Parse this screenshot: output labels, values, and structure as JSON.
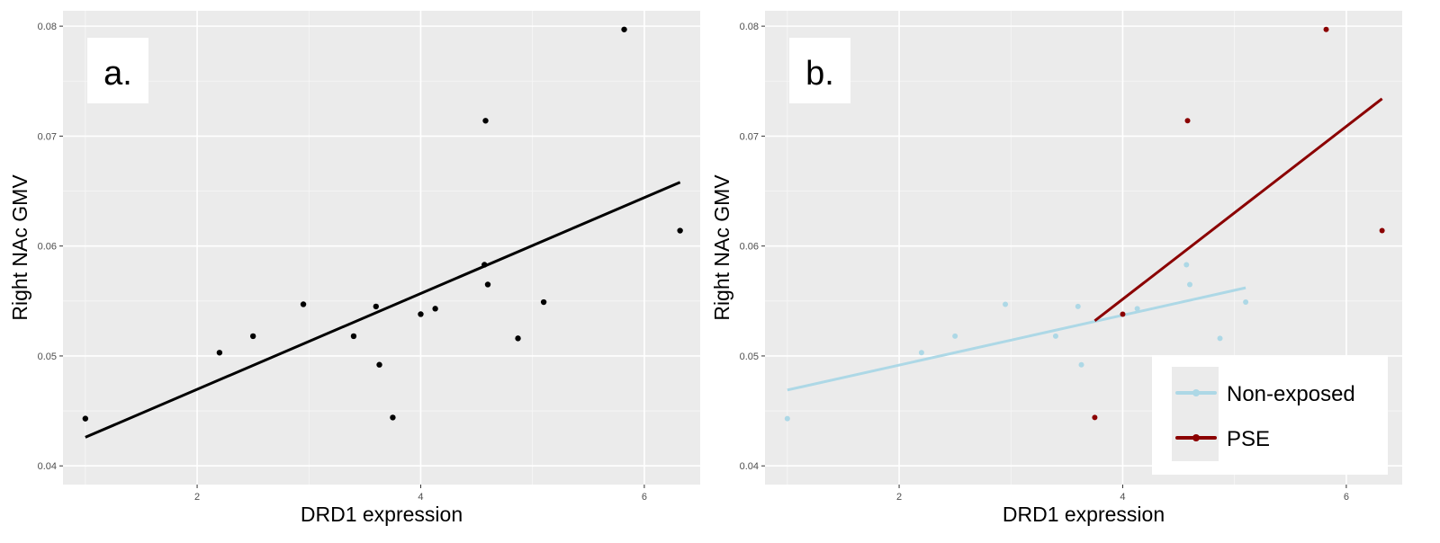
{
  "chart_data": [
    {
      "type": "scatter",
      "panel_label": "a.",
      "xlabel": "DRD1 expression",
      "ylabel": "Right NAc GMV",
      "xlim": [
        0.8,
        6.5
      ],
      "ylim": [
        0.0383,
        0.0814
      ],
      "x_ticks": [
        2,
        4,
        6
      ],
      "x_tick_labels": [
        "2",
        "4",
        "6"
      ],
      "y_ticks": [
        0.04,
        0.05,
        0.06,
        0.07,
        0.08
      ],
      "y_tick_labels": [
        "0.04",
        "0.05",
        "0.06",
        "0.07",
        "0.08"
      ],
      "grid": true,
      "point_color": "#000000",
      "line_color": "#000000",
      "points": [
        {
          "x": 1.0,
          "y": 0.0443
        },
        {
          "x": 2.2,
          "y": 0.0503
        },
        {
          "x": 2.5,
          "y": 0.0518
        },
        {
          "x": 2.95,
          "y": 0.0547
        },
        {
          "x": 3.4,
          "y": 0.0518
        },
        {
          "x": 3.6,
          "y": 0.0545
        },
        {
          "x": 3.63,
          "y": 0.0492
        },
        {
          "x": 3.75,
          "y": 0.0444
        },
        {
          "x": 4.0,
          "y": 0.0538
        },
        {
          "x": 4.13,
          "y": 0.0543
        },
        {
          "x": 4.57,
          "y": 0.0583
        },
        {
          "x": 4.58,
          "y": 0.0714
        },
        {
          "x": 4.6,
          "y": 0.0565
        },
        {
          "x": 4.87,
          "y": 0.0516
        },
        {
          "x": 5.1,
          "y": 0.0549
        },
        {
          "x": 5.82,
          "y": 0.0797
        },
        {
          "x": 6.32,
          "y": 0.0614
        }
      ],
      "fit_line": {
        "x": [
          1.0,
          6.32
        ],
        "y": [
          0.0426,
          0.0658
        ]
      }
    },
    {
      "type": "scatter",
      "panel_label": "b.",
      "xlabel": "DRD1 expression",
      "ylabel": "Right NAc GMV",
      "xlim": [
        0.8,
        6.5
      ],
      "ylim": [
        0.0383,
        0.0814
      ],
      "x_ticks": [
        2,
        4,
        6
      ],
      "x_tick_labels": [
        "2",
        "4",
        "6"
      ],
      "y_ticks": [
        0.04,
        0.05,
        0.06,
        0.07,
        0.08
      ],
      "y_tick_labels": [
        "0.04",
        "0.05",
        "0.06",
        "0.07",
        "0.08"
      ],
      "grid": true,
      "legend_position": "bottom-right",
      "series": [
        {
          "name": "Non-exposed",
          "color": "#add8e6",
          "points": [
            {
              "x": 1.0,
              "y": 0.0443
            },
            {
              "x": 2.2,
              "y": 0.0503
            },
            {
              "x": 2.5,
              "y": 0.0518
            },
            {
              "x": 2.95,
              "y": 0.0547
            },
            {
              "x": 3.4,
              "y": 0.0518
            },
            {
              "x": 3.6,
              "y": 0.0545
            },
            {
              "x": 3.63,
              "y": 0.0492
            },
            {
              "x": 4.13,
              "y": 0.0543
            },
            {
              "x": 4.57,
              "y": 0.0583
            },
            {
              "x": 4.6,
              "y": 0.0565
            },
            {
              "x": 4.87,
              "y": 0.0516
            },
            {
              "x": 5.1,
              "y": 0.0549
            }
          ],
          "fit_line": {
            "x": [
              1.0,
              5.1
            ],
            "y": [
              0.0469,
              0.0562
            ]
          }
        },
        {
          "name": "PSE",
          "color": "#8b0000",
          "points": [
            {
              "x": 3.75,
              "y": 0.0444
            },
            {
              "x": 4.0,
              "y": 0.0538
            },
            {
              "x": 4.58,
              "y": 0.0714
            },
            {
              "x": 5.82,
              "y": 0.0797
            },
            {
              "x": 6.32,
              "y": 0.0614
            }
          ],
          "fit_line": {
            "x": [
              3.75,
              6.32
            ],
            "y": [
              0.0532,
              0.0734
            ]
          }
        }
      ]
    }
  ]
}
